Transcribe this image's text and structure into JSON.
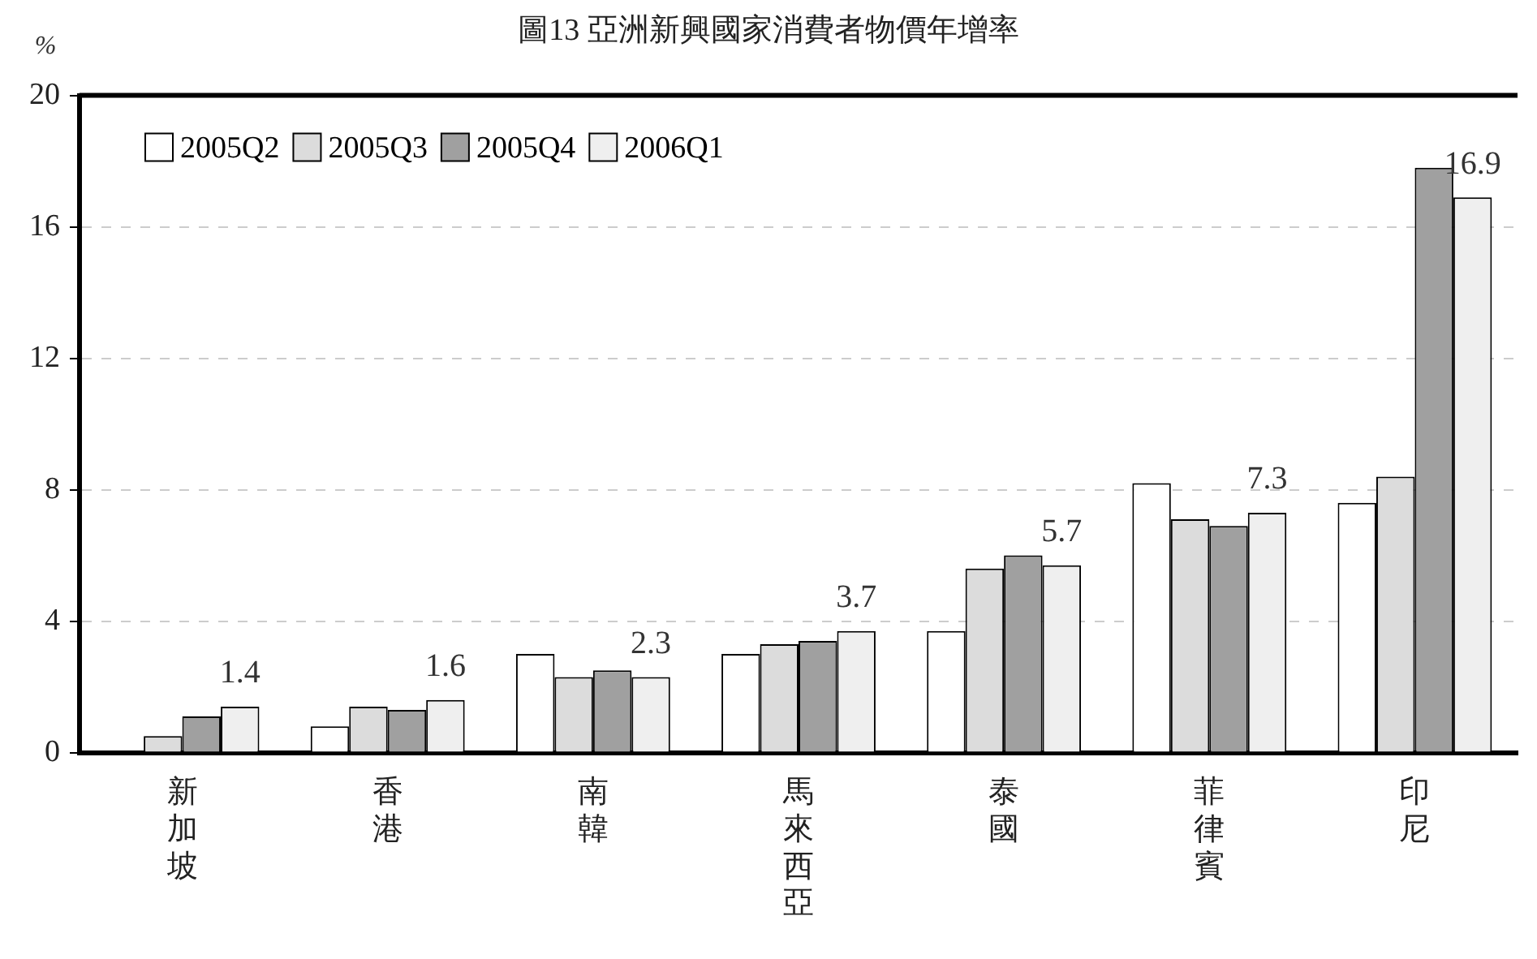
{
  "chart_data": {
    "type": "bar",
    "title": "圖13 亞洲新興國家消費者物價年增率",
    "ylabel": "%",
    "categories": [
      "新加坡",
      "香港",
      "南韓",
      "馬來西亞",
      "泰國",
      "菲律賓",
      "印尼"
    ],
    "series": [
      {
        "name": "2005Q2",
        "color": "#ffffff",
        "values": [
          null,
          0.8,
          3.0,
          3.0,
          3.7,
          8.2,
          7.6
        ]
      },
      {
        "name": "2005Q3",
        "color": "#dcdcdc",
        "values": [
          0.5,
          1.4,
          2.3,
          3.3,
          5.6,
          7.1,
          8.4
        ]
      },
      {
        "name": "2005Q4",
        "color": "#a0a0a0",
        "values": [
          1.1,
          1.3,
          2.5,
          3.4,
          6.0,
          6.9,
          17.8
        ]
      },
      {
        "name": "2006Q1",
        "color": "#efefef",
        "values": [
          1.4,
          1.6,
          2.3,
          3.7,
          5.7,
          7.3,
          16.9
        ],
        "value_labels": [
          "1.4",
          "1.6",
          "2.3",
          "3.7",
          "5.7",
          "7.3",
          "16.9"
        ]
      }
    ],
    "ylim": [
      0,
      20
    ],
    "yticks": [
      0,
      4,
      8,
      12,
      16,
      20
    ],
    "grid": "y",
    "line_style": "dashed",
    "legend": "top left"
  }
}
